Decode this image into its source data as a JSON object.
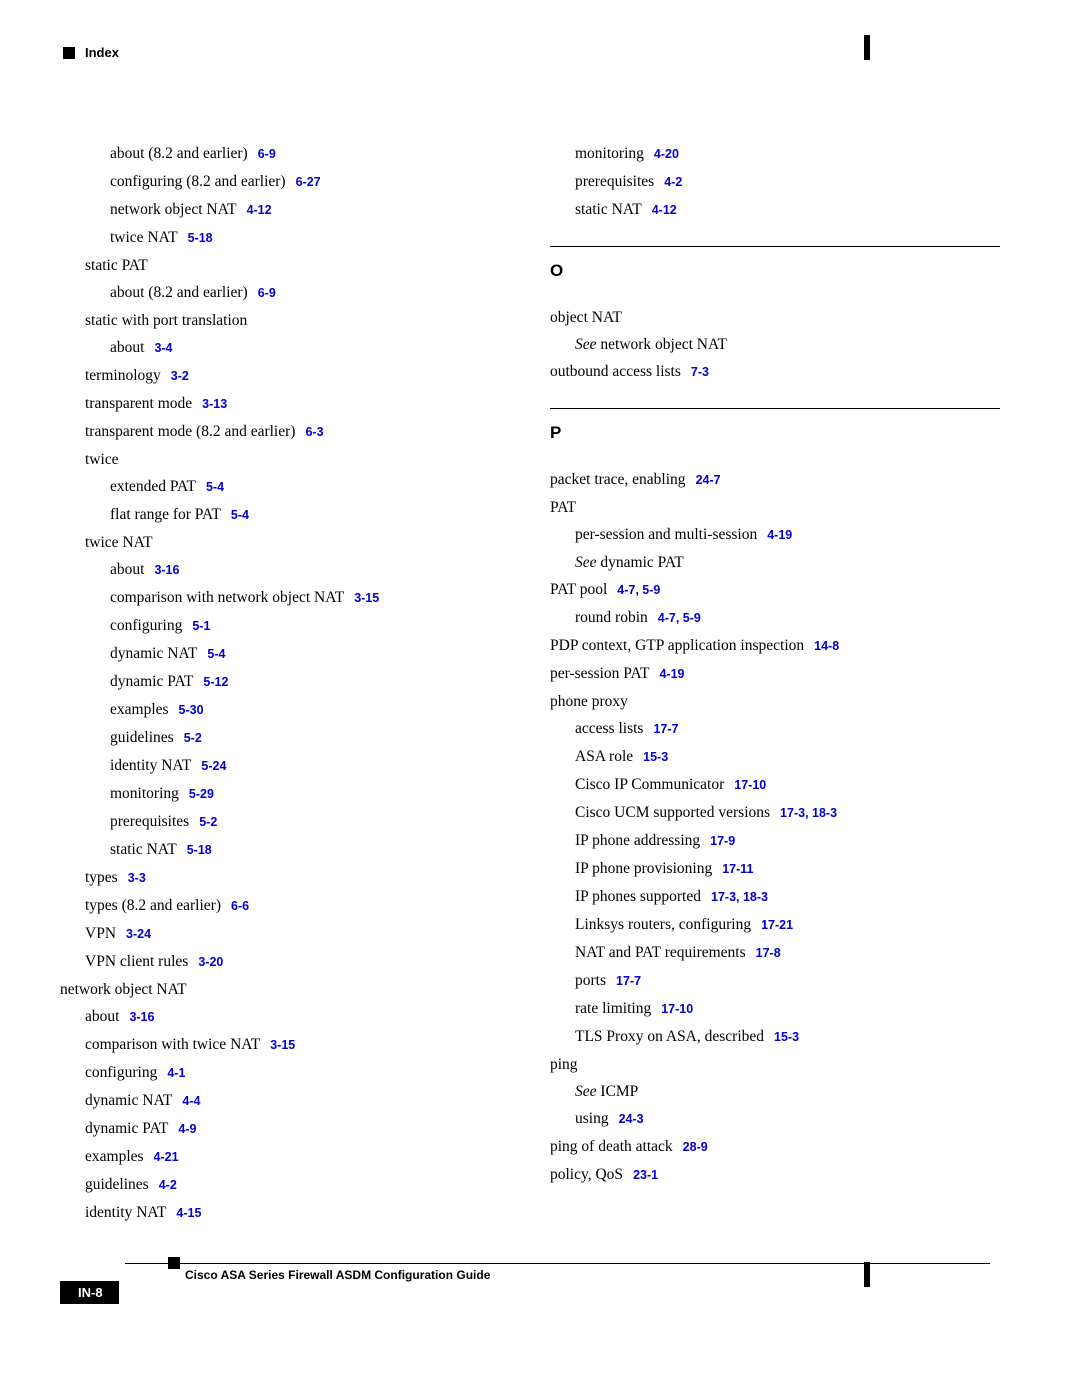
{
  "header": {
    "label": "Index"
  },
  "footer": {
    "title": "Cisco ASA Series Firewall ASDM Configuration Guide",
    "page_num": "IN-8"
  },
  "colors": {
    "link": "#0000d0",
    "text": "#000000",
    "bg": "#ffffff"
  },
  "left_col": [
    {
      "indent": 2,
      "text": "about (8.2 and earlier)",
      "refs": [
        "6-9"
      ]
    },
    {
      "indent": 2,
      "text": "configuring (8.2 and earlier)",
      "refs": [
        "6-27"
      ]
    },
    {
      "indent": 2,
      "text": "network object NAT",
      "refs": [
        "4-12"
      ]
    },
    {
      "indent": 2,
      "text": "twice NAT",
      "refs": [
        "5-18"
      ]
    },
    {
      "indent": 1,
      "text": "static PAT"
    },
    {
      "indent": 2,
      "text": "about (8.2 and earlier)",
      "refs": [
        "6-9"
      ]
    },
    {
      "indent": 1,
      "text": "static with port translation"
    },
    {
      "indent": 2,
      "text": "about",
      "refs": [
        "3-4"
      ]
    },
    {
      "indent": 1,
      "text": "terminology",
      "refs": [
        "3-2"
      ]
    },
    {
      "indent": 1,
      "text": "transparent mode",
      "refs": [
        "3-13"
      ]
    },
    {
      "indent": 1,
      "text": "transparent mode (8.2 and earlier)",
      "refs": [
        "6-3"
      ]
    },
    {
      "indent": 1,
      "text": "twice"
    },
    {
      "indent": 2,
      "text": "extended PAT",
      "refs": [
        "5-4"
      ]
    },
    {
      "indent": 2,
      "text": "flat range for PAT",
      "refs": [
        "5-4"
      ]
    },
    {
      "indent": 1,
      "text": "twice NAT"
    },
    {
      "indent": 2,
      "text": "about",
      "refs": [
        "3-16"
      ]
    },
    {
      "indent": 2,
      "text": "comparison with network object NAT",
      "refs": [
        "3-15"
      ]
    },
    {
      "indent": 2,
      "text": "configuring",
      "refs": [
        "5-1"
      ]
    },
    {
      "indent": 2,
      "text": "dynamic NAT",
      "refs": [
        "5-4"
      ]
    },
    {
      "indent": 2,
      "text": "dynamic PAT",
      "refs": [
        "5-12"
      ]
    },
    {
      "indent": 2,
      "text": "examples",
      "refs": [
        "5-30"
      ]
    },
    {
      "indent": 2,
      "text": "guidelines",
      "refs": [
        "5-2"
      ]
    },
    {
      "indent": 2,
      "text": "identity NAT",
      "refs": [
        "5-24"
      ]
    },
    {
      "indent": 2,
      "text": "monitoring",
      "refs": [
        "5-29"
      ]
    },
    {
      "indent": 2,
      "text": "prerequisites",
      "refs": [
        "5-2"
      ]
    },
    {
      "indent": 2,
      "text": "static NAT",
      "refs": [
        "5-18"
      ]
    },
    {
      "indent": 1,
      "text": "types",
      "refs": [
        "3-3"
      ]
    },
    {
      "indent": 1,
      "text": "types (8.2 and earlier)",
      "refs": [
        "6-6"
      ]
    },
    {
      "indent": 1,
      "text": "VPN",
      "refs": [
        "3-24"
      ]
    },
    {
      "indent": 1,
      "text": "VPN client rules",
      "refs": [
        "3-20"
      ]
    },
    {
      "indent": 0,
      "text": "network object NAT"
    },
    {
      "indent": 1,
      "text": "about",
      "refs": [
        "3-16"
      ]
    },
    {
      "indent": 1,
      "text": "comparison with twice NAT",
      "refs": [
        "3-15"
      ]
    },
    {
      "indent": 1,
      "text": "configuring",
      "refs": [
        "4-1"
      ]
    },
    {
      "indent": 1,
      "text": "dynamic NAT",
      "refs": [
        "4-4"
      ]
    },
    {
      "indent": 1,
      "text": "dynamic PAT",
      "refs": [
        "4-9"
      ]
    },
    {
      "indent": 1,
      "text": "examples",
      "refs": [
        "4-21"
      ]
    },
    {
      "indent": 1,
      "text": "guidelines",
      "refs": [
        "4-2"
      ]
    },
    {
      "indent": 1,
      "text": "identity NAT",
      "refs": [
        "4-15"
      ]
    }
  ],
  "right_col_top": [
    {
      "indent": 1,
      "text": "monitoring",
      "refs": [
        "4-20"
      ]
    },
    {
      "indent": 1,
      "text": "prerequisites",
      "refs": [
        "4-2"
      ]
    },
    {
      "indent": 1,
      "text": "static NAT",
      "refs": [
        "4-12"
      ]
    }
  ],
  "sections": [
    {
      "letter": "O",
      "entries": [
        {
          "indent": 0,
          "text": "object NAT"
        },
        {
          "indent": 1,
          "see_prefix": "See",
          "see_text": " network object NAT"
        },
        {
          "indent": 0,
          "text": "outbound access lists",
          "refs": [
            "7-3"
          ]
        }
      ]
    },
    {
      "letter": "P",
      "entries": [
        {
          "indent": 0,
          "text": "packet trace, enabling",
          "refs": [
            "24-7"
          ]
        },
        {
          "indent": 0,
          "text": "PAT"
        },
        {
          "indent": 1,
          "text": "per-session and multi-session",
          "refs": [
            "4-19"
          ]
        },
        {
          "indent": 1,
          "see_prefix": "See",
          "see_text": " dynamic PAT"
        },
        {
          "indent": 0,
          "text": "PAT pool",
          "refs": [
            "4-7, 5-9"
          ]
        },
        {
          "indent": 1,
          "text": "round robin",
          "refs": [
            "4-7, 5-9"
          ]
        },
        {
          "indent": 0,
          "text": "PDP context, GTP application inspection",
          "refs": [
            "14-8"
          ]
        },
        {
          "indent": 0,
          "text": "per-session PAT",
          "refs": [
            "4-19"
          ]
        },
        {
          "indent": 0,
          "text": "phone proxy"
        },
        {
          "indent": 1,
          "text": "access lists",
          "refs": [
            "17-7"
          ]
        },
        {
          "indent": 1,
          "text": "ASA role",
          "refs": [
            "15-3"
          ]
        },
        {
          "indent": 1,
          "text": "Cisco IP Communicator",
          "refs": [
            "17-10"
          ]
        },
        {
          "indent": 1,
          "text": "Cisco UCM supported versions",
          "refs": [
            "17-3, 18-3"
          ]
        },
        {
          "indent": 1,
          "text": "IP phone addressing",
          "refs": [
            "17-9"
          ]
        },
        {
          "indent": 1,
          "text": "IP phone provisioning",
          "refs": [
            "17-11"
          ]
        },
        {
          "indent": 1,
          "text": "IP phones supported",
          "refs": [
            "17-3, 18-3"
          ]
        },
        {
          "indent": 1,
          "text": "Linksys routers, configuring",
          "refs": [
            "17-21"
          ]
        },
        {
          "indent": 1,
          "text": "NAT and PAT requirements",
          "refs": [
            "17-8"
          ]
        },
        {
          "indent": 1,
          "text": "ports",
          "refs": [
            "17-7"
          ]
        },
        {
          "indent": 1,
          "text": "rate limiting",
          "refs": [
            "17-10"
          ]
        },
        {
          "indent": 1,
          "text": "TLS Proxy on ASA, described",
          "refs": [
            "15-3"
          ]
        },
        {
          "indent": 0,
          "text": "ping"
        },
        {
          "indent": 1,
          "see_prefix": "See",
          "see_text_plain": " ICMP"
        },
        {
          "indent": 1,
          "text": "using",
          "refs": [
            "24-3"
          ]
        },
        {
          "indent": 0,
          "text": "ping of death attack",
          "refs": [
            "28-9"
          ]
        },
        {
          "indent": 0,
          "text": "policy, QoS",
          "refs": [
            "23-1"
          ]
        }
      ]
    }
  ]
}
